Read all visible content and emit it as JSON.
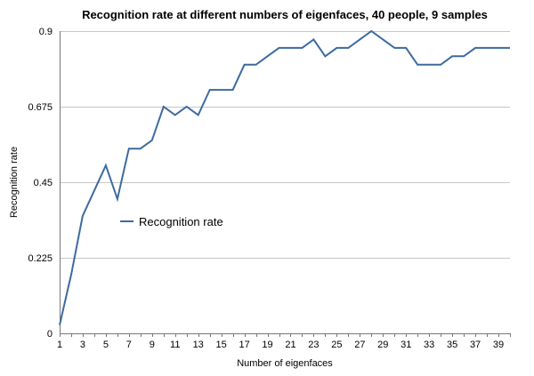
{
  "chart_data": {
    "type": "line",
    "title": "Recognition rate at different numbers of eigenfaces, 40 people, 9 samples",
    "xlabel": "Number of eigenfaces",
    "ylabel": "Recognition rate",
    "xlim": [
      1,
      40
    ],
    "ylim": [
      0,
      0.9
    ],
    "xticks": [
      1,
      3,
      5,
      7,
      9,
      11,
      13,
      15,
      17,
      19,
      21,
      23,
      25,
      27,
      29,
      31,
      33,
      35,
      37,
      39
    ],
    "xtick_labels": [
      "1",
      "3",
      "5",
      "7",
      "9",
      "11",
      "13",
      "15",
      "17",
      "19",
      "21",
      "23",
      "25",
      "27",
      "29",
      "31",
      "33",
      "35",
      "37",
      "39"
    ],
    "yticks": [
      0,
      0.225,
      0.45,
      0.675,
      0.9
    ],
    "ytick_labels": [
      "0",
      "0.225",
      "0.45",
      "0.675",
      "0.9"
    ],
    "grid": true,
    "legend_position": "center-left",
    "series": [
      {
        "name": "Recognition rate",
        "color": "#3d6aa0",
        "x": [
          1,
          2,
          3,
          4,
          5,
          6,
          7,
          8,
          9,
          10,
          11,
          12,
          13,
          14,
          15,
          16,
          17,
          18,
          19,
          20,
          21,
          22,
          23,
          24,
          25,
          26,
          27,
          28,
          29,
          30,
          31,
          32,
          33,
          34,
          35,
          36,
          37,
          38,
          39,
          40
        ],
        "values": [
          0.025,
          0.175,
          0.35,
          0.425,
          0.5,
          0.4,
          0.55,
          0.55,
          0.575,
          0.675,
          0.65,
          0.675,
          0.65,
          0.725,
          0.725,
          0.725,
          0.8,
          0.8,
          0.825,
          0.85,
          0.85,
          0.85,
          0.875,
          0.825,
          0.85,
          0.85,
          0.875,
          0.9,
          0.875,
          0.85,
          0.85,
          0.8,
          0.8,
          0.8,
          0.825,
          0.825,
          0.85,
          0.85,
          0.85,
          0.85
        ]
      }
    ]
  }
}
